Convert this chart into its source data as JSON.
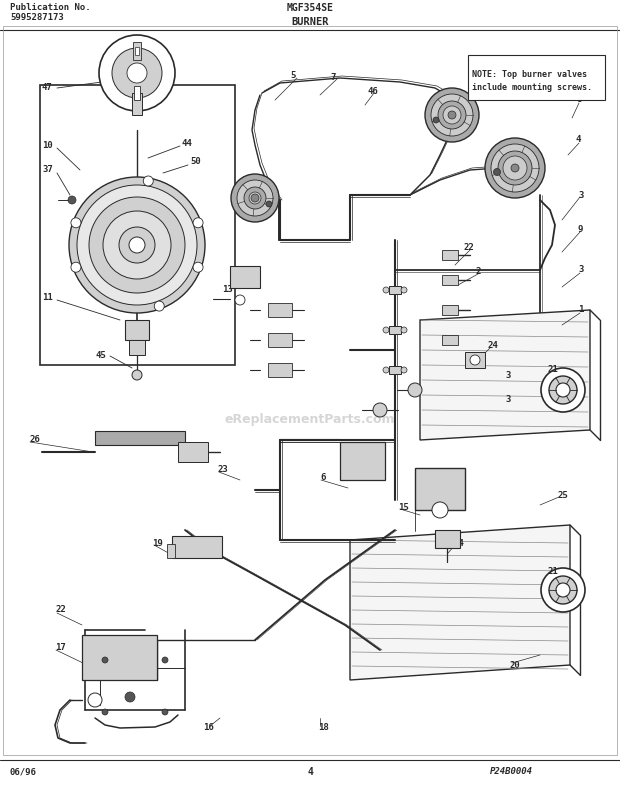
{
  "title": "MGF354SE",
  "subtitle": "BURNER",
  "pub_no_label": "Publication No.",
  "pub_no": "5995287173",
  "date": "06/96",
  "page": "4",
  "part_code": "P24B0004",
  "note_text": "NOTE: Top burner valves\ninclude mounting screws.",
  "bg_color": "#ffffff",
  "line_color": "#2a2a2a",
  "gray_color": "#888888",
  "light_gray": "#d0d0d0",
  "med_gray": "#aaaaaa"
}
